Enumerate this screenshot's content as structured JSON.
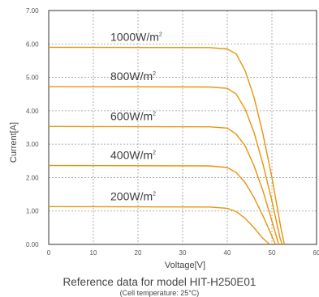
{
  "chart_data": {
    "type": "line",
    "xlabel": "Voltage[V]",
    "ylabel": "Current[A]",
    "xlim": [
      0,
      60
    ],
    "ylim": [
      0,
      7
    ],
    "xticks": [
      "0",
      "10",
      "20",
      "30",
      "40",
      "50",
      "60"
    ],
    "yticks": [
      "0.00",
      "1.00",
      "2.00",
      "3.00",
      "4.00",
      "5.00",
      "6.00",
      "7.00"
    ],
    "grid": true,
    "series": [
      {
        "name": "1000W/m",
        "sup": "2",
        "color": "#e8930c",
        "x": [
          0,
          36,
          40,
          42,
          44,
          46,
          48,
          50,
          52,
          52.8
        ],
        "y": [
          5.9,
          5.89,
          5.85,
          5.7,
          5.2,
          4.4,
          3.3,
          2.0,
          0.5,
          0
        ]
      },
      {
        "name": "800W/m",
        "sup": "2",
        "color": "#e8930c",
        "x": [
          0,
          36,
          40,
          42,
          44,
          46,
          48,
          50,
          51.8,
          52.3
        ],
        "y": [
          4.72,
          4.71,
          4.67,
          4.5,
          4.05,
          3.35,
          2.4,
          1.3,
          0.2,
          0
        ]
      },
      {
        "name": "600W/m",
        "sup": "2",
        "color": "#e8930c",
        "x": [
          0,
          36,
          40,
          42,
          44,
          46,
          48,
          50,
          51.5
        ],
        "y": [
          3.53,
          3.52,
          3.48,
          3.3,
          2.95,
          2.35,
          1.6,
          0.7,
          0
        ]
      },
      {
        "name": "400W/m",
        "sup": "2",
        "color": "#e8930c",
        "x": [
          0,
          36,
          40,
          42,
          44,
          46,
          48,
          50,
          50.8
        ],
        "y": [
          2.36,
          2.35,
          2.3,
          2.15,
          1.85,
          1.4,
          0.85,
          0.25,
          0
        ]
      },
      {
        "name": "200W/m",
        "sup": "2",
        "color": "#e8930c",
        "x": [
          0,
          36,
          40,
          42,
          44,
          46,
          48,
          49.5
        ],
        "y": [
          1.13,
          1.12,
          1.08,
          0.98,
          0.78,
          0.5,
          0.18,
          0
        ]
      }
    ]
  },
  "caption": {
    "main": "Reference data for model HIT-H250E01",
    "sub": "(Cell temperature: 25°C)"
  }
}
